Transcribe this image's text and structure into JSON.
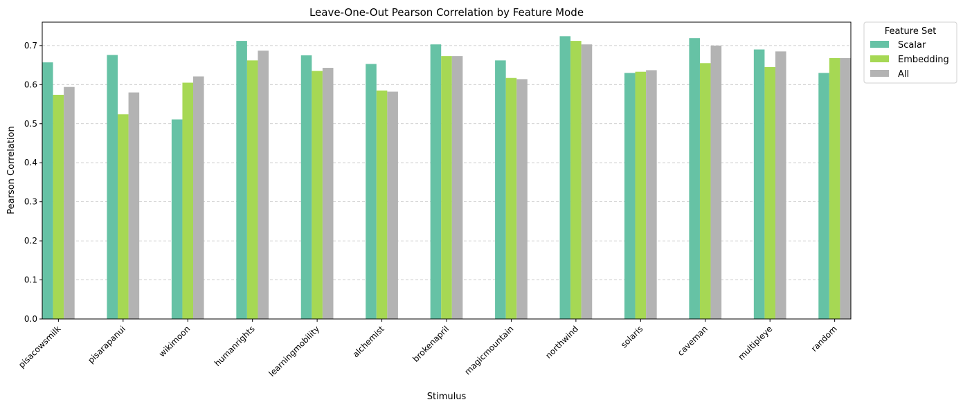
{
  "chart_data": {
    "type": "bar",
    "title": "Leave-One-Out Pearson Correlation by Feature Mode",
    "xlabel": "Stimulus",
    "ylabel": "Pearson Correlation",
    "ylim": [
      0,
      0.76
    ],
    "yticks": [
      0.0,
      0.1,
      0.2,
      0.3,
      0.4,
      0.5,
      0.6,
      0.7
    ],
    "ytick_labels": [
      "0.0",
      "0.1",
      "0.2",
      "0.3",
      "0.4",
      "0.5",
      "0.6",
      "0.7"
    ],
    "grid": "horizontal-dashed",
    "legend_title": "Feature Set",
    "legend_position": "outside-top-right",
    "categories": [
      "pisacowsmilk",
      "pisarapanui",
      "wikimoon",
      "humanrights",
      "learningmobility",
      "alchemist",
      "brokenapril",
      "magicmountain",
      "northwind",
      "solaris",
      "caveman",
      "multipleye",
      "random"
    ],
    "series": [
      {
        "name": "Scalar",
        "color": "#66c2a5",
        "values": [
          0.657,
          0.676,
          0.511,
          0.712,
          0.675,
          0.653,
          0.703,
          0.662,
          0.724,
          0.63,
          0.719,
          0.69,
          0.63
        ]
      },
      {
        "name": "Embedding",
        "color": "#a6d854",
        "values": [
          0.574,
          0.524,
          0.605,
          0.662,
          0.635,
          0.585,
          0.673,
          0.617,
          0.712,
          0.633,
          0.655,
          0.645,
          0.668
        ]
      },
      {
        "name": "All",
        "color": "#b3b3b3",
        "values": [
          0.594,
          0.58,
          0.621,
          0.687,
          0.643,
          0.582,
          0.673,
          0.614,
          0.703,
          0.637,
          0.7,
          0.685,
          0.668
        ]
      }
    ]
  }
}
